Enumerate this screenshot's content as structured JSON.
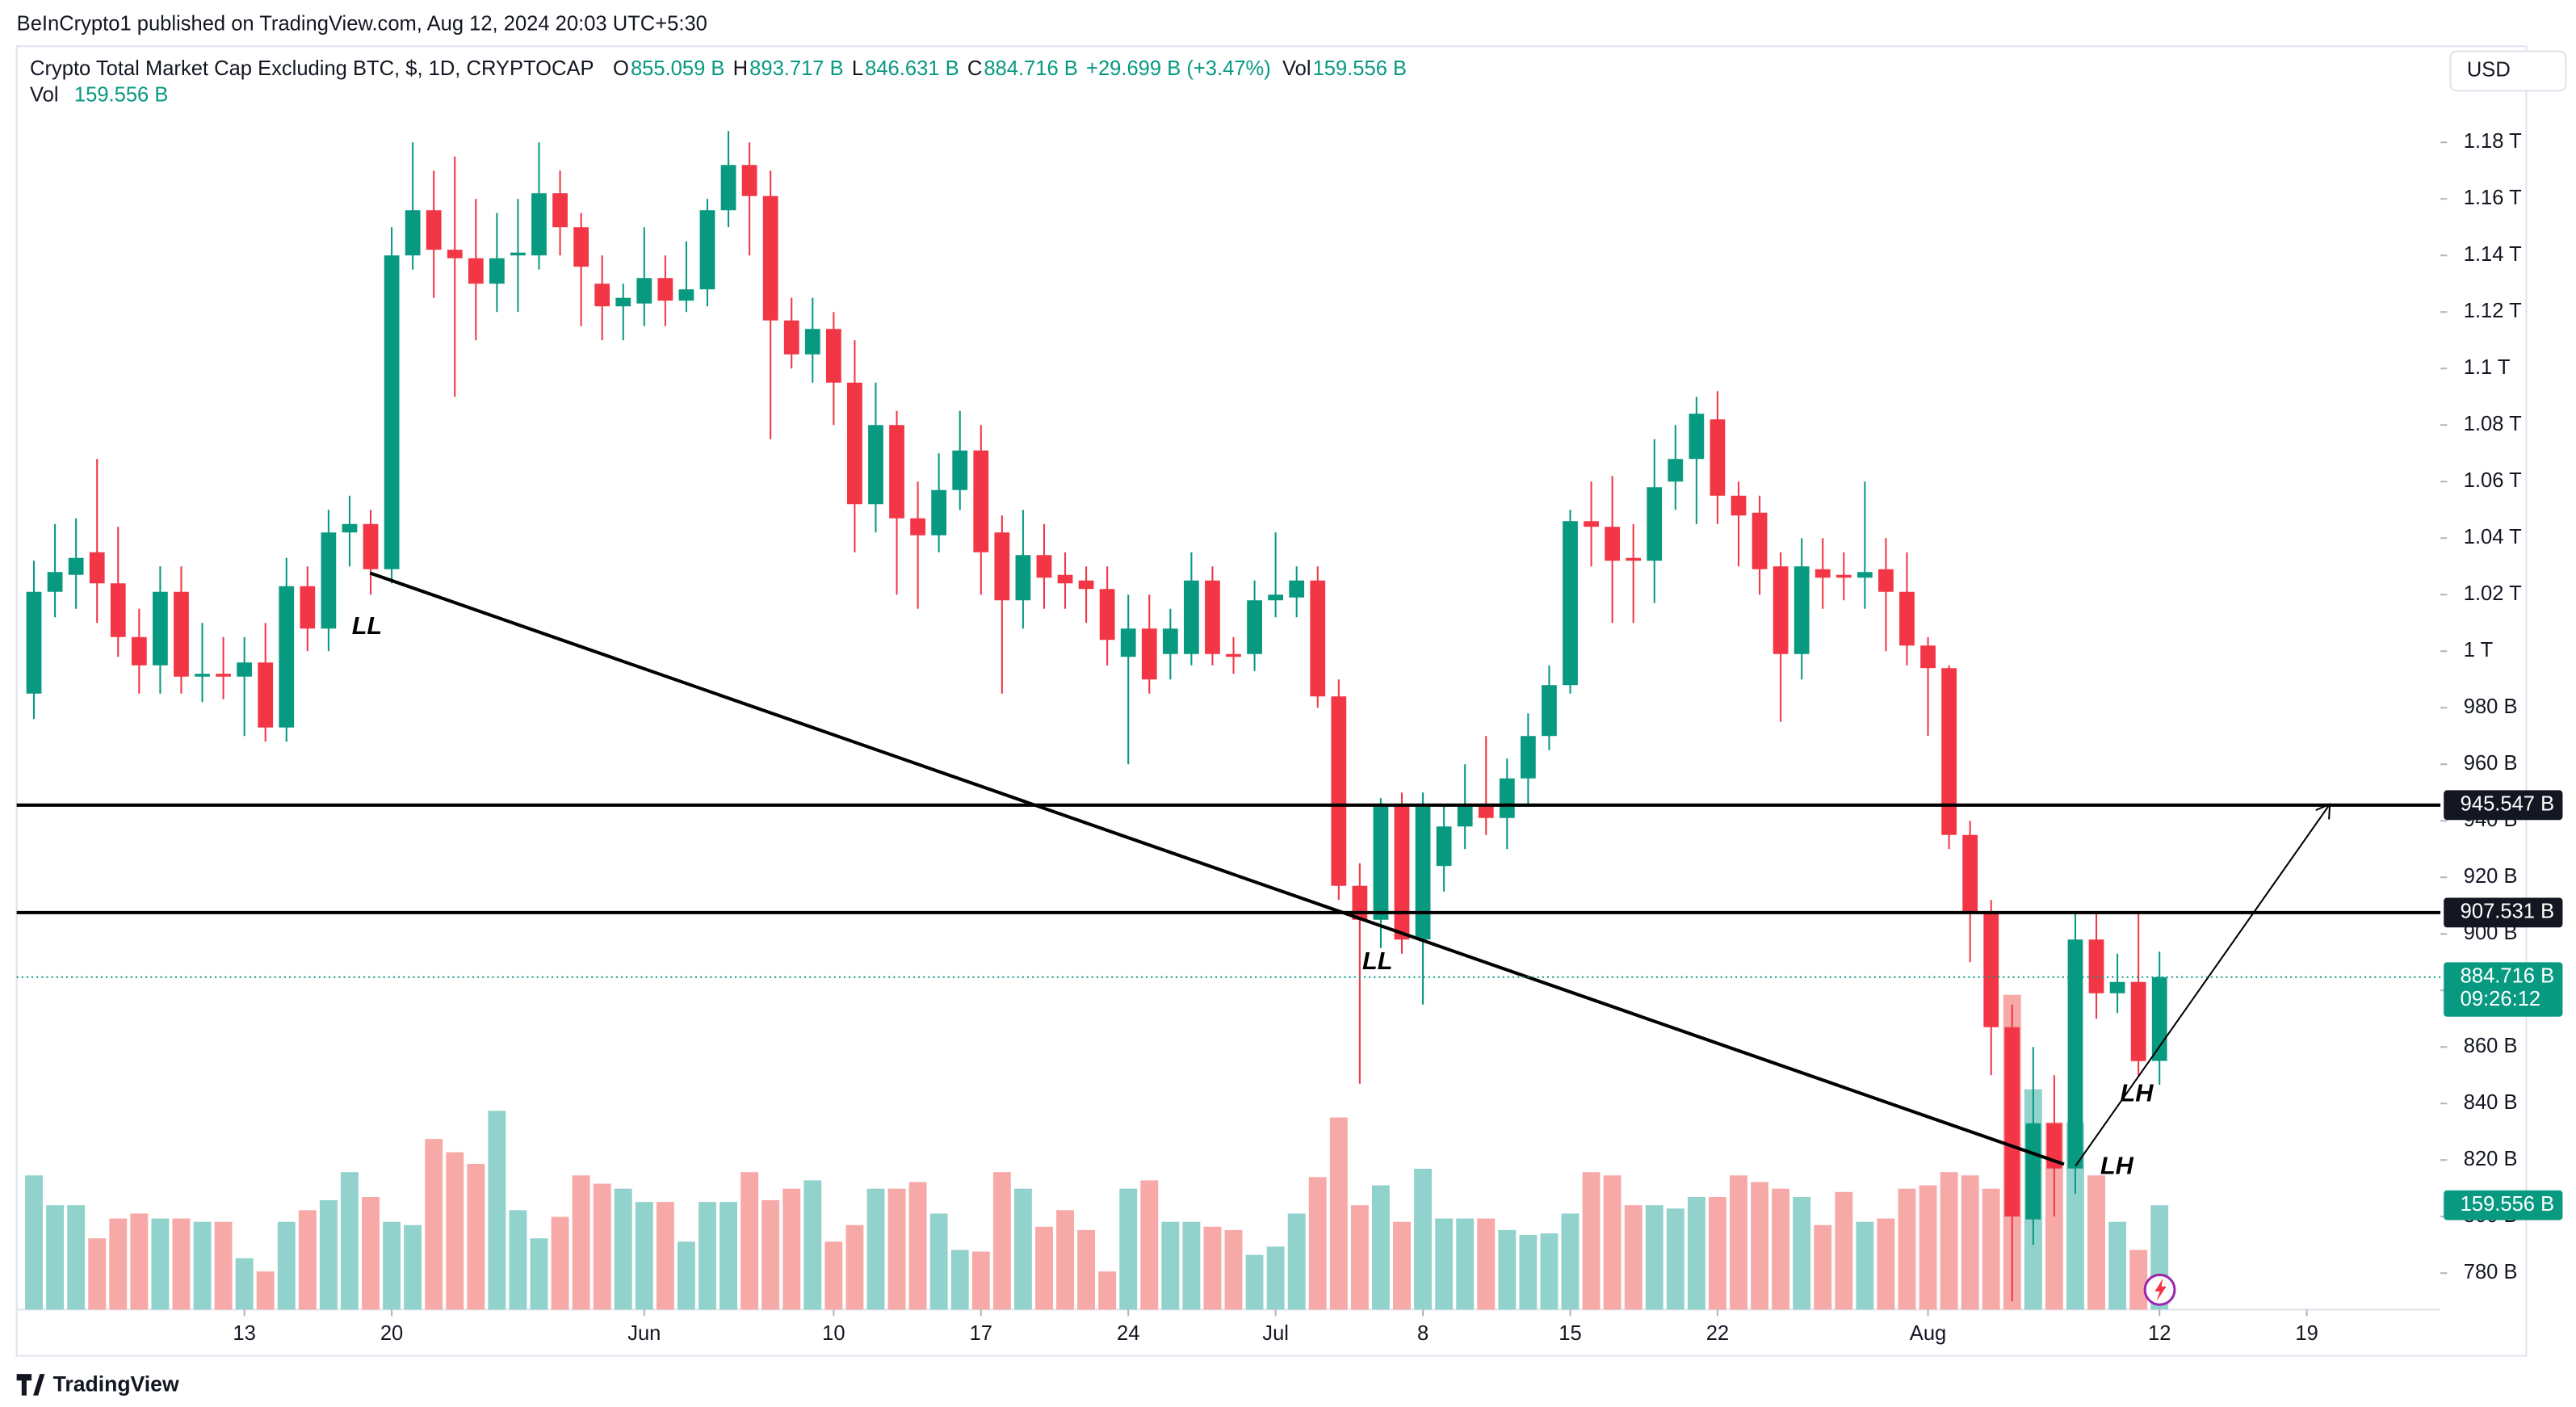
{
  "header": "BeInCrypto1 published on TradingView.com, Aug 12, 2024 20:03 UTC+5:30",
  "brand": "TradingView",
  "currency": "USD",
  "chart_data": {
    "type": "candlestick",
    "title": "Crypto Total Market Cap Excluding BTC, $, 1D, CRYPTOCAP",
    "legend": {
      "ohlc": [
        {
          "key": "O",
          "text": "855.059 B"
        },
        {
          "key": "H",
          "text": "893.717 B"
        },
        {
          "key": "L",
          "text": "846.631 B"
        },
        {
          "key": "C",
          "text": "884.716 B"
        }
      ],
      "change": "+29.699 B (+3.47%)",
      "vol_key": "Vol",
      "vol_text": "159.556 B"
    },
    "volume_legend": {
      "name": "Vol",
      "text": "159.556 B"
    },
    "up_color": "#089981",
    "down_color": "#f23645",
    "volume_up_color": "#92d2cc",
    "volume_down_color": "#f7a9a8",
    "x": [
      0,
      1,
      2,
      3,
      4,
      5,
      6,
      7,
      8,
      9,
      10,
      11,
      12,
      13,
      14,
      15,
      16,
      17,
      18,
      19,
      20,
      21,
      22,
      23,
      24,
      25,
      26,
      27,
      28,
      29,
      30,
      31,
      32,
      33,
      34,
      35,
      36,
      37,
      38,
      39,
      40,
      41,
      42,
      43,
      44,
      45,
      46,
      47,
      48,
      49,
      50,
      51,
      52,
      53,
      54,
      55,
      56,
      57,
      58,
      59,
      60,
      61,
      62,
      63,
      64,
      65,
      66,
      67,
      68,
      69,
      70,
      71,
      72,
      73,
      74,
      75,
      76,
      77,
      78,
      79,
      80,
      81,
      82,
      83,
      84,
      85,
      86,
      87,
      88,
      89,
      90,
      91,
      92,
      93,
      94,
      95,
      96,
      97,
      98,
      99,
      100,
      101
    ],
    "open": [
      985,
      1021,
      1027,
      1035,
      1024,
      1005,
      995,
      1021,
      991,
      992,
      991,
      996,
      973,
      1023,
      1008,
      1042,
      1045,
      1029,
      1140,
      1156,
      1142,
      1139,
      1130,
      1140,
      1140,
      1162,
      1150,
      1130,
      1122,
      1123,
      1132,
      1124,
      1128,
      1156,
      1172,
      1161,
      1117,
      1105,
      1114,
      1095,
      1052,
      1080,
      1047,
      1041,
      1057,
      1071,
      1042,
      1018,
      1034,
      1027,
      1025,
      1022,
      998,
      1008,
      999,
      999,
      1025,
      999,
      999,
      1018,
      1019,
      1025,
      984,
      917,
      905,
      945,
      898,
      924,
      938,
      945,
      941,
      955,
      970,
      988,
      1046,
      1044,
      1033,
      1032,
      1060,
      1068,
      1082,
      1055,
      1049,
      1030,
      999,
      1029,
      1027,
      1026,
      1029,
      1021,
      1002,
      994,
      935,
      908,
      867,
      799,
      833,
      817,
      898,
      879,
      883,
      855.059
    ],
    "close": [
      1021,
      1028,
      1033,
      1024,
      1005,
      995,
      1021,
      991,
      992,
      991,
      996,
      973,
      1023,
      1008,
      1042,
      1045,
      1029,
      1140,
      1156,
      1142,
      1139,
      1130,
      1139,
      1141,
      1162,
      1150,
      1136,
      1122,
      1125,
      1132,
      1124,
      1128,
      1156,
      1172,
      1161,
      1117,
      1105,
      1114,
      1095,
      1052,
      1080,
      1047,
      1041,
      1057,
      1071,
      1035,
      1018,
      1034,
      1026,
      1024,
      1022,
      1004,
      1008,
      990,
      1008,
      1025,
      999,
      998,
      1018,
      1020,
      1025,
      984,
      917,
      905,
      945,
      898,
      945,
      938,
      945,
      941,
      955,
      970,
      988,
      1046,
      1044,
      1032,
      1032,
      1058,
      1068,
      1084,
      1055,
      1048,
      1029,
      999,
      1030,
      1026,
      1026,
      1028,
      1021,
      1002,
      994,
      935,
      908,
      867,
      800,
      833,
      817,
      898,
      879,
      883,
      855,
      884.716
    ],
    "high": [
      1032,
      1045,
      1047,
      1068,
      1044,
      1015,
      1030,
      1030,
      1010,
      1005,
      1005,
      1010,
      1033,
      1030,
      1050,
      1055,
      1050,
      1150,
      1180,
      1170,
      1175,
      1160,
      1155,
      1160,
      1180,
      1170,
      1155,
      1140,
      1130,
      1150,
      1140,
      1145,
      1160,
      1184,
      1180,
      1170,
      1125,
      1125,
      1120,
      1110,
      1095,
      1085,
      1060,
      1070,
      1085,
      1080,
      1048,
      1050,
      1045,
      1035,
      1030,
      1030,
      1020,
      1020,
      1015,
      1035,
      1030,
      1005,
      1025,
      1042,
      1030,
      1030,
      990,
      925,
      948,
      950,
      950,
      945,
      960,
      970,
      962,
      978,
      995,
      1050,
      1060,
      1062,
      1045,
      1075,
      1080,
      1090,
      1092,
      1060,
      1055,
      1035,
      1040,
      1040,
      1035,
      1060,
      1040,
      1035,
      1005,
      995,
      940,
      912,
      875,
      860,
      850,
      907,
      907,
      893,
      907,
      893.717
    ],
    "low": [
      976,
      1012,
      1015,
      1010,
      998,
      985,
      985,
      985,
      982,
      983,
      970,
      968,
      968,
      1000,
      1000,
      1030,
      1020,
      1024,
      1135,
      1125,
      1090,
      1110,
      1120,
      1120,
      1135,
      1140,
      1115,
      1110,
      1110,
      1115,
      1115,
      1120,
      1122,
      1150,
      1140,
      1075,
      1100,
      1095,
      1080,
      1035,
      1042,
      1020,
      1015,
      1035,
      1050,
      1020,
      985,
      1008,
      1015,
      1015,
      1010,
      995,
      960,
      985,
      990,
      995,
      995,
      992,
      993,
      1012,
      1012,
      980,
      912,
      847,
      895,
      893,
      875,
      915,
      930,
      935,
      930,
      945,
      965,
      985,
      1030,
      1010,
      1010,
      1017,
      1050,
      1045,
      1045,
      1030,
      1020,
      975,
      990,
      1015,
      1018,
      1015,
      1000,
      995,
      970,
      930,
      890,
      850,
      770,
      790,
      800,
      808,
      870,
      872,
      850,
      846.631
    ],
    "volume": [
      205.2,
      159.6,
      159.6,
      108.9,
      139.3,
      146.9,
      139.3,
      139.3,
      134.2,
      134.2,
      78.5,
      58.3,
      134.2,
      152.0,
      167.2,
      210.2,
      172.2,
      134.2,
      129.2,
      260.9,
      240.6,
      222.9,
      304.0,
      152.0,
      108.9,
      141.8,
      205.2,
      192.5,
      184.9,
      164.6,
      164.6,
      103.9,
      164.6,
      164.6,
      210.2,
      167.2,
      184.9,
      197.6,
      103.9,
      129.2,
      184.9,
      184.9,
      195.0,
      146.9,
      91.2,
      88.7,
      210.2,
      184.9,
      126.7,
      152.0,
      121.6,
      58.3,
      184.9,
      197.6,
      134.2,
      134.2,
      126.7,
      121.6,
      83.6,
      96.3,
      146.9,
      202.6,
      293.8,
      159.6,
      190.0,
      134.2,
      215.3,
      139.3,
      139.3,
      139.3,
      121.6,
      114.0,
      116.5,
      146.9,
      210.2,
      205.2,
      159.6,
      159.6,
      154.5,
      172.2,
      172.2,
      205.2,
      195.0,
      184.9,
      172.2,
      129.2,
      179.8,
      134.2,
      139.3,
      184.9,
      190.0,
      210.2,
      205.2,
      184.9,
      481.3,
      336.9,
      286.2,
      286.2,
      205.2,
      134.2,
      91.2,
      159.556
    ],
    "xlim": [
      -0.82,
      114.35
    ],
    "ylim": [
      767.1,
      1214.0
    ],
    "vol_ylim": [
      0,
      1932
    ],
    "xticks": [
      {
        "value": 10,
        "label": "13"
      },
      {
        "value": 17,
        "label": "20"
      },
      {
        "value": 29,
        "label": "Jun"
      },
      {
        "value": 38,
        "label": "10"
      },
      {
        "value": 45,
        "label": "17"
      },
      {
        "value": 52,
        "label": "24"
      },
      {
        "value": 59,
        "label": "Jul"
      },
      {
        "value": 66,
        "label": "8"
      },
      {
        "value": 73,
        "label": "15"
      },
      {
        "value": 80,
        "label": "22"
      },
      {
        "value": 90,
        "label": "Aug"
      },
      {
        "value": 101,
        "label": "12"
      },
      {
        "value": 108,
        "label": "19"
      }
    ],
    "yticks": [
      {
        "value": 780,
        "label": "780 B"
      },
      {
        "value": 800,
        "label": "800 B"
      },
      {
        "value": 820,
        "label": "820 B"
      },
      {
        "value": 840,
        "label": "840 B"
      },
      {
        "value": 860,
        "label": "860 B"
      },
      {
        "value": 880,
        "label": "880 B"
      },
      {
        "value": 900,
        "label": "900 B"
      },
      {
        "value": 920,
        "label": "920 B"
      },
      {
        "value": 940,
        "label": "940 B"
      },
      {
        "value": 960,
        "label": "960 B"
      },
      {
        "value": 980,
        "label": "980 B"
      },
      {
        "value": 1000,
        "label": "1 T"
      },
      {
        "value": 1020,
        "label": "1.02 T"
      },
      {
        "value": 1040,
        "label": "1.04 T"
      },
      {
        "value": 1060,
        "label": "1.06 T"
      },
      {
        "value": 1080,
        "label": "1.08 T"
      },
      {
        "value": 1100,
        "label": "1.1 T"
      },
      {
        "value": 1120,
        "label": "1.12 T"
      },
      {
        "value": 1140,
        "label": "1.14 T"
      },
      {
        "value": 1160,
        "label": "1.16 T"
      },
      {
        "value": 1180,
        "label": "1.18 T"
      }
    ],
    "levels": [
      {
        "value": 945.547,
        "label": "945.547 B"
      },
      {
        "value": 907.531,
        "label": "907.531 B"
      }
    ],
    "last_price": {
      "value": 884.716,
      "label": "884.716 B",
      "countdown": "09:26:12"
    },
    "volume_last": {
      "value": 159.556,
      "label": "159.556 B"
    },
    "annotations": [
      "LL",
      "LL",
      "LH",
      "LH"
    ]
  }
}
